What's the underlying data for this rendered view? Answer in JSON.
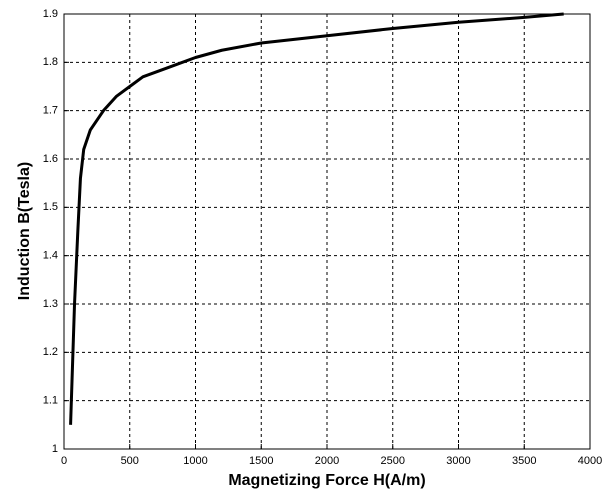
{
  "chart_data": {
    "type": "line",
    "xlabel": "Magnetizing Force H(A/m)",
    "ylabel": "Induction B(Tesla)",
    "series": [
      {
        "color": "#000000",
        "x": [
          50,
          80,
          105,
          125,
          150,
          200,
          300,
          400,
          500,
          600,
          800,
          1000,
          1200,
          1500,
          2000,
          2500,
          3000,
          3500,
          3800
        ],
        "values": [
          1.05,
          1.3,
          1.45,
          1.56,
          1.62,
          1.66,
          1.7,
          1.73,
          1.75,
          1.77,
          1.79,
          1.81,
          1.825,
          1.84,
          1.855,
          1.87,
          1.883,
          1.893,
          1.9
        ]
      }
    ],
    "xlim": [
      0,
      4000
    ],
    "xticks": [
      0,
      500,
      1000,
      1500,
      2000,
      2500,
      3000,
      3500,
      4000
    ],
    "ylim": [
      1,
      1.9
    ],
    "yticks": [
      1,
      1.1,
      1.2,
      1.3,
      1.4,
      1.5,
      1.6,
      1.7,
      1.8,
      1.9
    ],
    "grid": true
  }
}
